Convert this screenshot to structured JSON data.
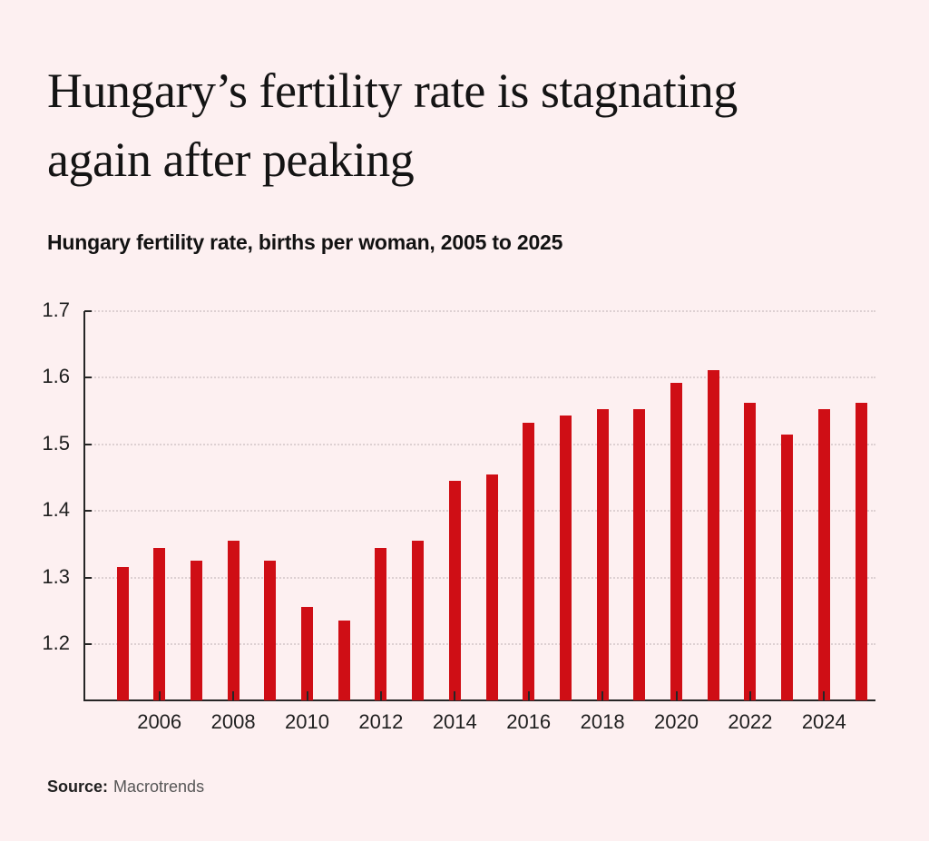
{
  "title": "Hungary’s fertility rate is stagnating again after peaking",
  "title_lines": [
    "Hungary’s fertility rate is stagnating",
    "again after peaking"
  ],
  "subtitle": "Hungary fertility rate, births per woman, 2005 to 2025",
  "source": {
    "label": "Source:",
    "value": "Macrotrends"
  },
  "colors": {
    "background": "#fdf0f1",
    "bar": "#cf0e15",
    "axis": "#262626",
    "gridline": "#ddd0d2",
    "text": "#141414"
  },
  "chart_data": {
    "type": "bar",
    "title": "Hungary’s fertility rate is stagnating again after peaking",
    "subtitle": "Hungary fertility rate, births per woman, 2005 to 2025",
    "xlabel": "",
    "ylabel": "",
    "categories": [
      2005,
      2006,
      2007,
      2008,
      2009,
      2010,
      2011,
      2012,
      2013,
      2014,
      2015,
      2016,
      2017,
      2018,
      2019,
      2020,
      2021,
      2022,
      2023,
      2024,
      2025
    ],
    "values": [
      1.316,
      1.345,
      1.326,
      1.356,
      1.326,
      1.256,
      1.236,
      1.345,
      1.356,
      1.445,
      1.455,
      1.533,
      1.543,
      1.553,
      1.553,
      1.592,
      1.612,
      1.562,
      1.515,
      1.553,
      1.562
    ],
    "x_tick_labels": [
      "2006",
      "2008",
      "2010",
      "2012",
      "2014",
      "2016",
      "2018",
      "2020",
      "2022",
      "2024"
    ],
    "y_ticks": [
      1.2,
      1.3,
      1.4,
      1.5,
      1.6,
      1.7
    ],
    "y_tick_labels": [
      "1.2",
      "1.3",
      "1.4",
      "1.5",
      "1.6",
      "1.7"
    ],
    "ylim": [
      1.116,
      1.7
    ],
    "grid": "horizontal-dotted",
    "legend": "none",
    "bar_color": "#cf0e15",
    "source": "Macrotrends"
  }
}
